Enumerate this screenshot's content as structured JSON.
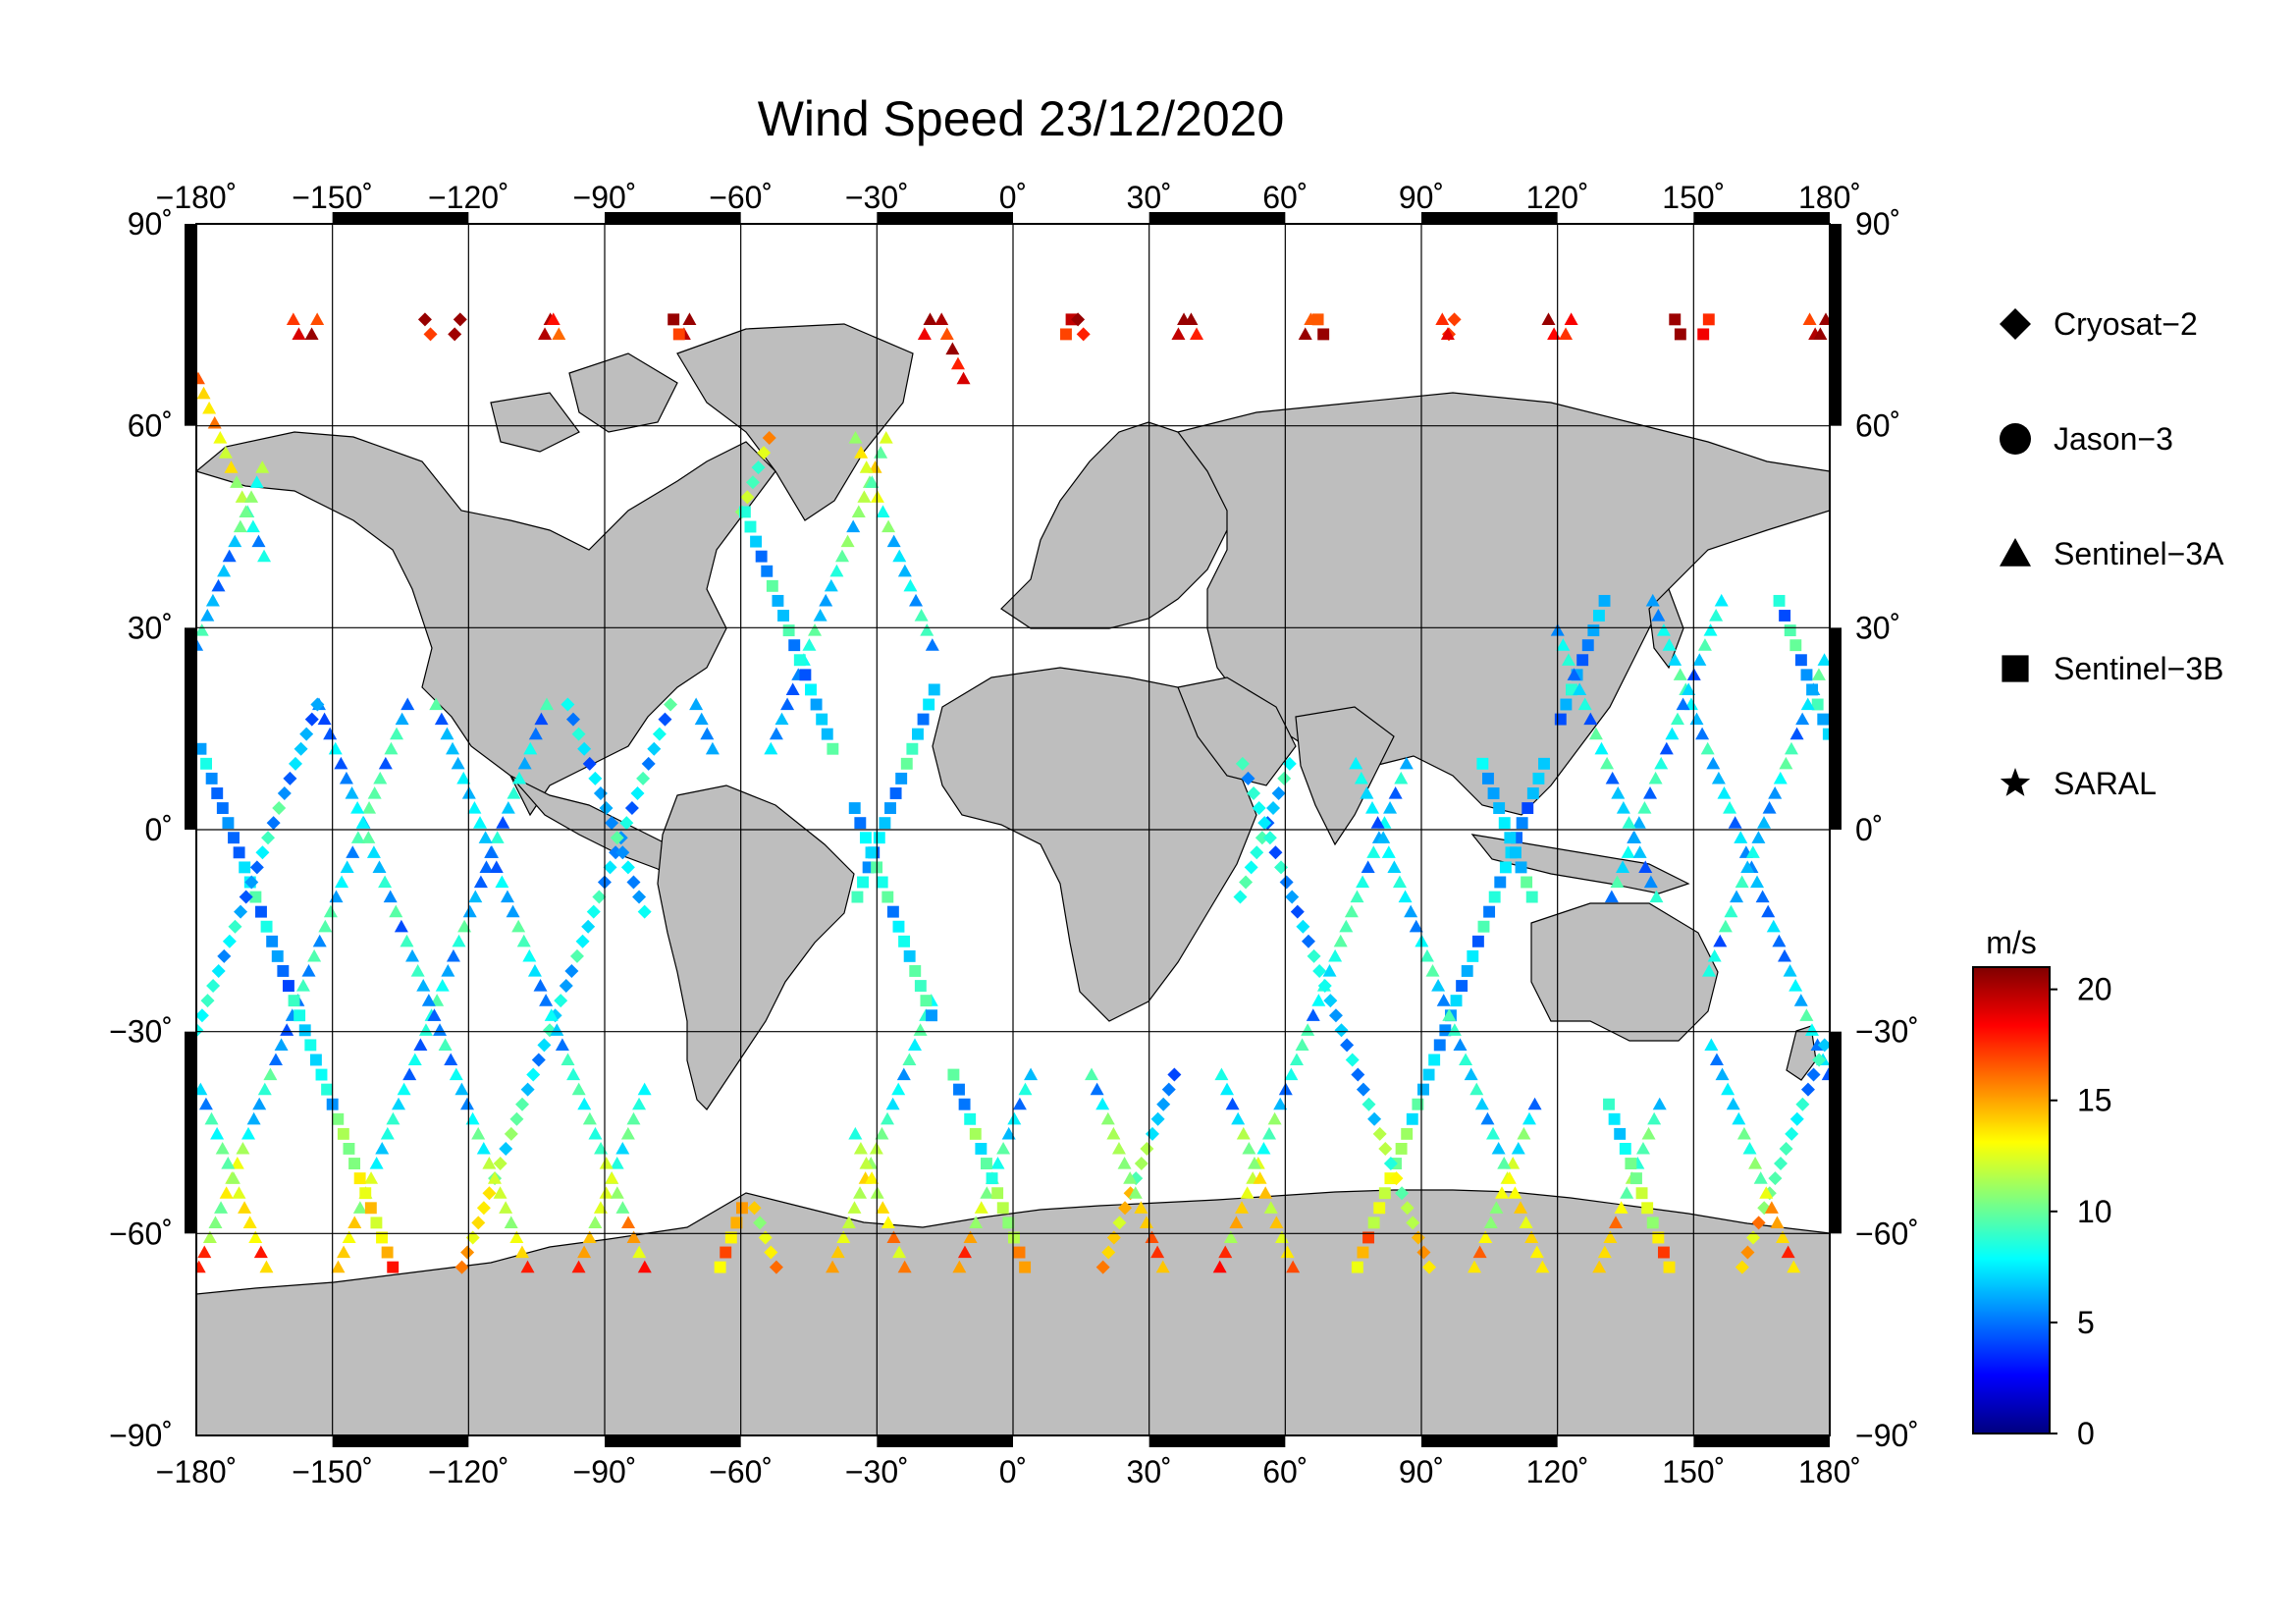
{
  "title": "Wind Speed 23/12/2020",
  "axes": {
    "lon_ticks": [
      {
        "v": -180,
        "label": "−180˚"
      },
      {
        "v": -150,
        "label": "−150˚"
      },
      {
        "v": -120,
        "label": "−120˚"
      },
      {
        "v": -90,
        "label": "−90˚"
      },
      {
        "v": -60,
        "label": "−60˚"
      },
      {
        "v": -30,
        "label": "−30˚"
      },
      {
        "v": 0,
        "label": "0˚"
      },
      {
        "v": 30,
        "label": "30˚"
      },
      {
        "v": 60,
        "label": "60˚"
      },
      {
        "v": 90,
        "label": "90˚"
      },
      {
        "v": 120,
        "label": "120˚"
      },
      {
        "v": 150,
        "label": "150˚"
      },
      {
        "v": 180,
        "label": "180˚"
      }
    ],
    "lat_ticks": [
      {
        "v": 90,
        "label": "90˚"
      },
      {
        "v": 60,
        "label": "60˚"
      },
      {
        "v": 30,
        "label": "30˚"
      },
      {
        "v": 0,
        "label": "0˚"
      },
      {
        "v": -30,
        "label": "−30˚"
      },
      {
        "v": -60,
        "label": "−60˚"
      },
      {
        "v": -90,
        "label": "−90˚"
      }
    ],
    "lon_range": [
      -180,
      180
    ],
    "lat_range": [
      -90,
      90
    ]
  },
  "legend": {
    "items": [
      {
        "label": "Cryosat−2",
        "marker": "diamond"
      },
      {
        "label": "Jason−3",
        "marker": "circle"
      },
      {
        "label": "Sentinel−3A",
        "marker": "triangle"
      },
      {
        "label": "Sentinel−3B",
        "marker": "square"
      },
      {
        "label": "SARAL",
        "marker": "star"
      }
    ]
  },
  "colorbar": {
    "unit": "m/s",
    "range": [
      0,
      21
    ],
    "ticks": [
      {
        "v": 20,
        "label": "20"
      },
      {
        "v": 15,
        "label": "15"
      },
      {
        "v": 10,
        "label": "10"
      },
      {
        "v": 5,
        "label": "5"
      },
      {
        "v": 0,
        "label": "0"
      }
    ],
    "colors": [
      "#00007f",
      "#0000ff",
      "#007fff",
      "#00ffff",
      "#7fff7f",
      "#ffff00",
      "#ff7f00",
      "#ff0000",
      "#7f0000"
    ]
  },
  "colors": {
    "land": "#bebebe",
    "ocean": "#ffffff",
    "grid": "#000000"
  }
}
